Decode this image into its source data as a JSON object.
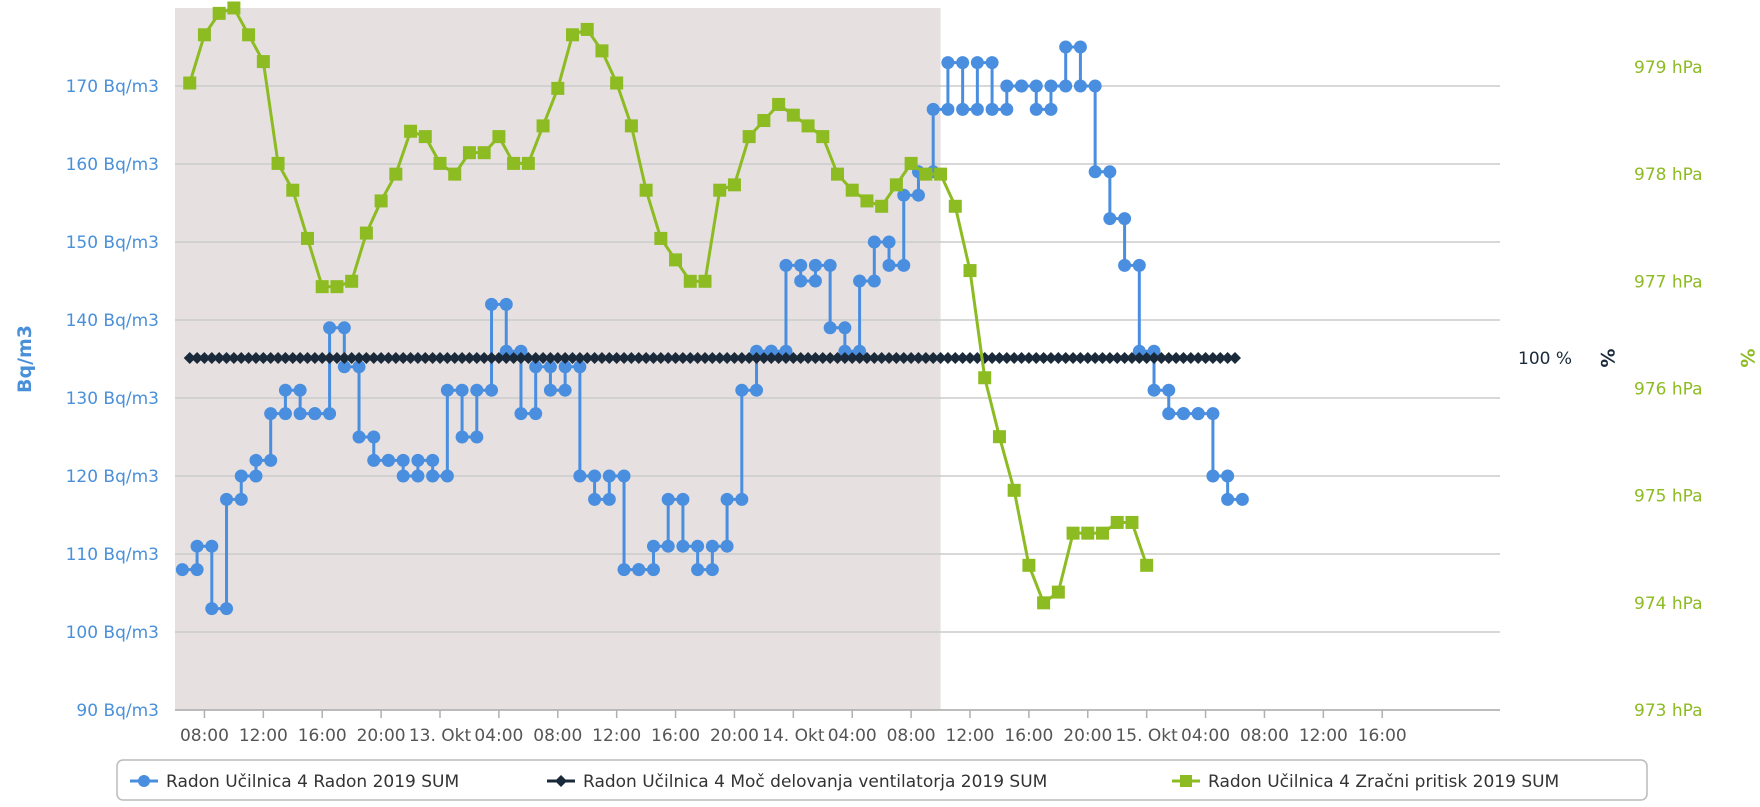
{
  "chart_data": {
    "type": "line",
    "y_left": {
      "title": "Bq/m3",
      "unit": "Bq/m3",
      "range": [
        90,
        180
      ],
      "ticks": [
        90,
        100,
        110,
        120,
        130,
        140,
        150,
        160,
        170
      ],
      "tick_labels": [
        "90 Bq/m3",
        "100 Bq/m3",
        "110 Bq/m3",
        "120 Bq/m3",
        "130 Bq/m3",
        "140 Bq/m3",
        "150 Bq/m3",
        "160 Bq/m3",
        "170 Bq/m3"
      ],
      "color": "#4a90d9"
    },
    "y_right_pressure": {
      "unit": "hPa",
      "range": [
        973,
        979.55
      ],
      "ticks": [
        973,
        974,
        975,
        976,
        977,
        978,
        979
      ],
      "tick_labels": [
        "973 hPa",
        "974 hPa",
        "975 hPa",
        "976 hPa",
        "977 hPa",
        "978 hPa",
        "979 hPa"
      ],
      "color": "#8dbb22"
    },
    "y_right_percent": {
      "title": "%",
      "label_inner": "%",
      "value_label": "100 %",
      "color": "#1a2a3a",
      "title_color": "#8dbb22"
    },
    "x_axis": {
      "unit": "hours since first tick",
      "range": [
        -2,
        88
      ],
      "shaded_band": [
        -2,
        50
      ],
      "ticks": [
        0,
        4,
        8,
        12,
        16,
        20,
        24,
        28,
        32,
        36,
        40,
        44,
        48,
        52,
        56,
        60,
        64,
        68,
        72,
        76,
        80
      ],
      "tick_labels": [
        "08:00",
        "12:00",
        "16:00",
        "20:00",
        "13. Okt",
        "04:00",
        "08:00",
        "12:00",
        "16:00",
        "20:00",
        "14. Okt",
        "04:00",
        "08:00",
        "12:00",
        "16:00",
        "20:00",
        "15. Okt",
        "04:00",
        "08:00",
        "12:00",
        "16:00"
      ]
    },
    "grid": true,
    "series": [
      {
        "name": "Radon Učilnica 4 Radon 2019 SUM",
        "color": "#4a8ee0",
        "axis": "left",
        "marker": "circle",
        "points": [
          [
            -1,
            108
          ],
          [
            0,
            111
          ],
          [
            1,
            103
          ],
          [
            2,
            117
          ],
          [
            3,
            120
          ],
          [
            4,
            122
          ],
          [
            5,
            128
          ],
          [
            6,
            131
          ],
          [
            7,
            128
          ],
          [
            8,
            128
          ],
          [
            9,
            139
          ],
          [
            10,
            134
          ],
          [
            11,
            125
          ],
          [
            12,
            122
          ],
          [
            13,
            122
          ],
          [
            14,
            120
          ],
          [
            15,
            122
          ],
          [
            16,
            120
          ],
          [
            17,
            131
          ],
          [
            18,
            125
          ],
          [
            19,
            131
          ],
          [
            20,
            142
          ],
          [
            21,
            136
          ],
          [
            22,
            128
          ],
          [
            23,
            134
          ],
          [
            24,
            131
          ],
          [
            25,
            134
          ],
          [
            26,
            120
          ],
          [
            27,
            117
          ],
          [
            28,
            120
          ],
          [
            29,
            108
          ],
          [
            30,
            108
          ],
          [
            31,
            111
          ],
          [
            32,
            117
          ],
          [
            33,
            111
          ],
          [
            34,
            108
          ],
          [
            35,
            111
          ],
          [
            36,
            117
          ],
          [
            37,
            131
          ],
          [
            38,
            136
          ],
          [
            39,
            136
          ],
          [
            40,
            147
          ],
          [
            41,
            145
          ],
          [
            42,
            147
          ],
          [
            43,
            139
          ],
          [
            44,
            136
          ],
          [
            45,
            145
          ],
          [
            46,
            150
          ],
          [
            47,
            147
          ],
          [
            48,
            156
          ],
          [
            49,
            159
          ],
          [
            50,
            167
          ],
          [
            51,
            173
          ],
          [
            52,
            167
          ],
          [
            53,
            173
          ],
          [
            54,
            167
          ],
          [
            55,
            170
          ],
          [
            56,
            170
          ],
          [
            57,
            167
          ],
          [
            58,
            170
          ],
          [
            59,
            175
          ],
          [
            60,
            170
          ],
          [
            61,
            159
          ],
          [
            62,
            153
          ],
          [
            63,
            147
          ],
          [
            64,
            136
          ],
          [
            65,
            131
          ],
          [
            66,
            128
          ],
          [
            67,
            128
          ],
          [
            68,
            128
          ],
          [
            69,
            120
          ],
          [
            70,
            117
          ]
        ]
      },
      {
        "name": "Radon Učilnica 4 Moč delovanja ventilatorja 2019 SUM",
        "color": "#1a2a3a",
        "axis": "percent",
        "marker": "diamond",
        "constant_value": 100,
        "x_range": [
          -1,
          70
        ]
      },
      {
        "name": "Radon Učilnica 4 Zračni pritisk 2019 SUM",
        "color": "#8dbb22",
        "axis": "right",
        "marker": "square",
        "points": [
          [
            -1,
            978.85
          ],
          [
            0,
            979.3
          ],
          [
            1,
            979.5
          ],
          [
            2,
            979.55
          ],
          [
            3,
            979.3
          ],
          [
            4,
            979.05
          ],
          [
            5,
            978.1
          ],
          [
            6,
            977.85
          ],
          [
            7,
            977.4
          ],
          [
            8,
            976.95
          ],
          [
            9,
            976.95
          ],
          [
            10,
            977.0
          ],
          [
            11,
            977.45
          ],
          [
            12,
            977.75
          ],
          [
            13,
            978.0
          ],
          [
            14,
            978.4
          ],
          [
            15,
            978.35
          ],
          [
            16,
            978.1
          ],
          [
            17,
            978.0
          ],
          [
            18,
            978.2
          ],
          [
            19,
            978.2
          ],
          [
            20,
            978.35
          ],
          [
            21,
            978.1
          ],
          [
            22,
            978.1
          ],
          [
            23,
            978.45
          ],
          [
            24,
            978.8
          ],
          [
            25,
            979.3
          ],
          [
            26,
            979.35
          ],
          [
            27,
            979.15
          ],
          [
            28,
            978.85
          ],
          [
            29,
            978.45
          ],
          [
            30,
            977.85
          ],
          [
            31,
            977.4
          ],
          [
            32,
            977.2
          ],
          [
            33,
            977.0
          ],
          [
            34,
            977.0
          ],
          [
            35,
            977.85
          ],
          [
            36,
            977.9
          ],
          [
            37,
            978.35
          ],
          [
            38,
            978.5
          ],
          [
            39,
            978.65
          ],
          [
            40,
            978.55
          ],
          [
            41,
            978.45
          ],
          [
            42,
            978.35
          ],
          [
            43,
            978.0
          ],
          [
            44,
            977.85
          ],
          [
            45,
            977.75
          ],
          [
            46,
            977.7
          ],
          [
            47,
            977.9
          ],
          [
            48,
            978.1
          ],
          [
            49,
            978.0
          ],
          [
            50,
            978.0
          ],
          [
            51,
            977.7
          ],
          [
            52,
            977.1
          ],
          [
            53,
            976.1
          ],
          [
            54,
            975.55
          ],
          [
            55,
            975.05
          ],
          [
            56,
            974.35
          ],
          [
            57,
            974.0
          ],
          [
            58,
            974.1
          ],
          [
            59,
            974.65
          ],
          [
            60,
            974.65
          ],
          [
            61,
            974.65
          ],
          [
            62,
            974.75
          ],
          [
            63,
            974.75
          ],
          [
            64,
            974.35
          ]
        ]
      }
    ],
    "legend": {
      "placement": "bottom",
      "items": [
        "Radon Učilnica 4 Radon 2019 SUM",
        "Radon Učilnica 4 Moč delovanja ventilatorja 2019 SUM",
        "Radon Učilnica 4 Zračni pritisk 2019 SUM"
      ]
    }
  }
}
